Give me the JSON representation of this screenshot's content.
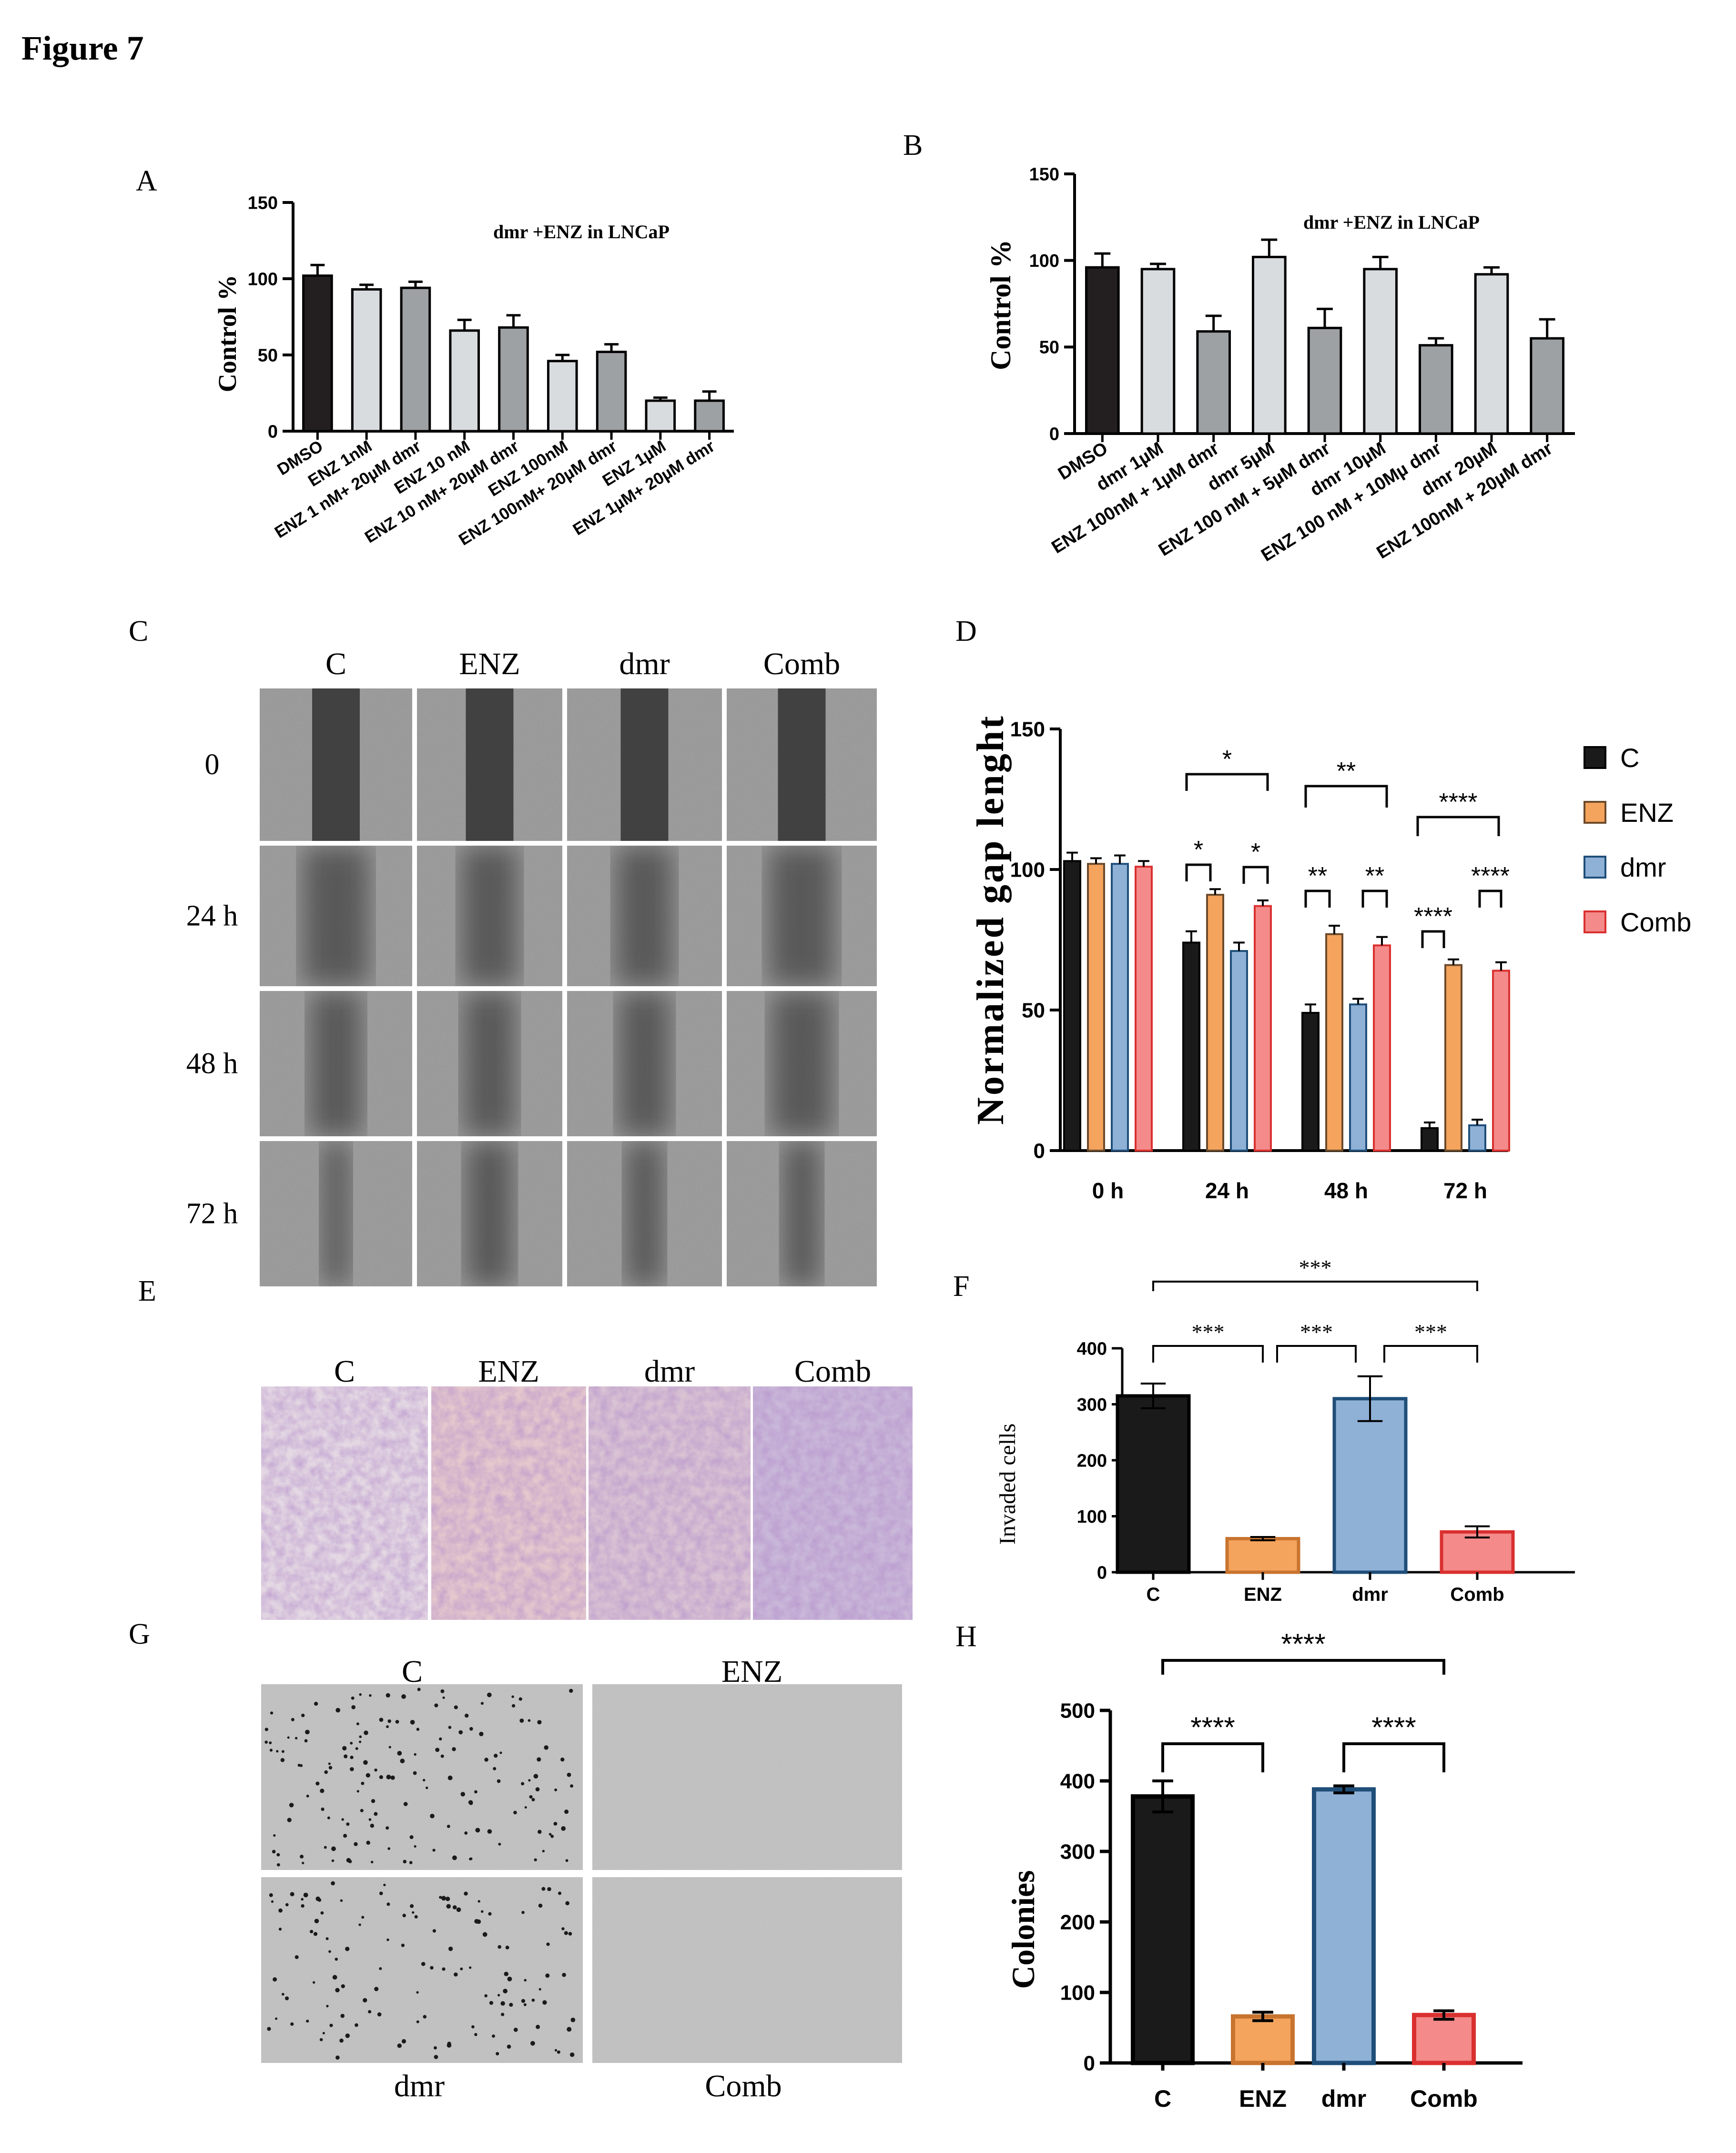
{
  "figure_title": "Figure 7",
  "colors": {
    "control": "#1a1a1a",
    "enz": "#f5a45d",
    "dmr": "#8fb1d6",
    "comb": "#f48a8a",
    "light_gray": "#d9dcdf",
    "mid_gray": "#9ea1a4"
  },
  "panels": {
    "A": {
      "letter": "A",
      "ylabel": "Control %",
      "inset_title": "dmr +ENZ in LNCaP",
      "yticks": [
        "0",
        "50",
        "100",
        "150"
      ]
    },
    "B": {
      "letter": "B",
      "ylabel": "Control %",
      "inset_title": "dmr +ENZ in LNCaP",
      "yticks": [
        "0",
        "50",
        "100",
        "150"
      ]
    },
    "C": {
      "letter": "C",
      "columns": [
        "C",
        "ENZ",
        "dmr",
        "Comb"
      ],
      "rows": [
        "0",
        "24 h",
        "48 h",
        "72 h"
      ]
    },
    "D": {
      "letter": "D",
      "ylabel": "Normalized gap lenght",
      "yticks": [
        "0",
        "50",
        "100",
        "150"
      ],
      "legend": [
        "C",
        "ENZ",
        "dmr",
        "Comb"
      ],
      "sig": {
        "s1": "*",
        "s2": "**",
        "s4": "****"
      }
    },
    "E": {
      "letter": "E",
      "columns": [
        "C",
        "ENZ",
        "dmr",
        "Comb"
      ]
    },
    "F": {
      "letter": "F",
      "ylabel": "Invaded cells",
      "yticks": [
        "0",
        "100",
        "200",
        "300",
        "400"
      ],
      "sig": "***"
    },
    "G": {
      "letter": "G",
      "top_labels": [
        "C",
        "ENZ"
      ],
      "bottom_labels": [
        "dmr",
        "Comb"
      ]
    },
    "H": {
      "letter": "H",
      "ylabel": "Colonies",
      "yticks": [
        "0",
        "100",
        "200",
        "300",
        "400",
        "500"
      ],
      "sig": "****"
    }
  },
  "chart_data": [
    {
      "panel": "A",
      "type": "bar",
      "title": "dmr +ENZ in LNCaP",
      "ylabel": "Control %",
      "ylim": [
        0,
        150
      ],
      "categories": [
        "DMSO",
        "ENZ 1nM",
        "ENZ 1 nM+ 20µM dmr",
        "ENZ 10 nM",
        "ENZ 10 nM+ 20µM dmr",
        "ENZ 100nM",
        "ENZ 100nM+ 20µM dmr",
        "ENZ 1µM",
        "ENZ 1µM+ 20µM dmr"
      ],
      "values": [
        102,
        93,
        94,
        66,
        68,
        46,
        52,
        20,
        20
      ],
      "errors": [
        7,
        3,
        4,
        7,
        8,
        4,
        5,
        2,
        6
      ]
    },
    {
      "panel": "B",
      "type": "bar",
      "title": "dmr +ENZ in LNCaP",
      "ylabel": "Control %",
      "ylim": [
        0,
        150
      ],
      "categories": [
        "DMSO",
        "dmr 1µM",
        "ENZ 100nM + 1µM dmr",
        "dmr 5µM",
        "ENZ 100 nM + 5µM dmr",
        "dmr 10µM",
        "ENZ 100 nM + 10Mµ dmr",
        "dmr 20µM",
        "ENZ 100nM + 20µM dmr"
      ],
      "values": [
        96,
        95,
        59,
        102,
        61,
        95,
        51,
        92,
        55
      ],
      "errors": [
        8,
        3,
        9,
        10,
        11,
        7,
        4,
        4,
        11
      ]
    },
    {
      "panel": "D",
      "type": "bar",
      "ylabel": "Normalized gap lenght",
      "ylim": [
        0,
        150
      ],
      "categories": [
        "0 h",
        "24 h",
        "48 h",
        "72 h"
      ],
      "series": [
        {
          "name": "C",
          "values": [
            103,
            74,
            49,
            8
          ],
          "errors": [
            3,
            4,
            3,
            2
          ]
        },
        {
          "name": "ENZ",
          "values": [
            102,
            91,
            77,
            66
          ],
          "errors": [
            2,
            2,
            3,
            2
          ]
        },
        {
          "name": "dmr",
          "values": [
            102,
            71,
            52,
            9
          ],
          "errors": [
            3,
            3,
            2,
            2
          ]
        },
        {
          "name": "Comb",
          "values": [
            101,
            87,
            73,
            64
          ],
          "errors": [
            2,
            2,
            3,
            3
          ]
        }
      ],
      "legend": "right"
    },
    {
      "panel": "F",
      "type": "bar",
      "ylabel": "Invaded cells",
      "ylim": [
        0,
        400
      ],
      "categories": [
        "C",
        "ENZ",
        "dmr",
        "Comb"
      ],
      "values": [
        315,
        60,
        310,
        72
      ],
      "errors": [
        22,
        3,
        40,
        10
      ]
    },
    {
      "panel": "H",
      "type": "bar",
      "ylabel": "Colonies",
      "ylim": [
        0,
        500
      ],
      "categories": [
        "C",
        "ENZ",
        "dmr",
        "Comb"
      ],
      "values": [
        378,
        66,
        388,
        68
      ],
      "errors": [
        22,
        6,
        5,
        6
      ]
    }
  ]
}
